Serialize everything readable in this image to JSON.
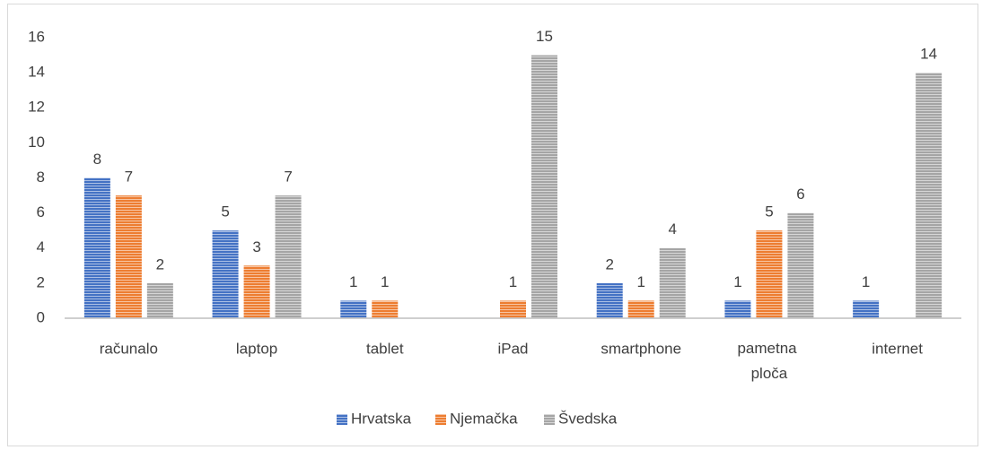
{
  "chart_data": {
    "type": "bar",
    "categories": [
      "računalo",
      "laptop",
      "tablet",
      "iPad",
      "smartphone",
      "pametna ploča",
      "internet"
    ],
    "series": [
      {
        "name": "Hrvatska",
        "color": "#4472c4",
        "values": [
          8,
          5,
          1,
          null,
          2,
          1,
          1
        ]
      },
      {
        "name": "Njemačka",
        "color": "#ed7d31",
        "values": [
          7,
          3,
          1,
          1,
          1,
          5,
          null
        ]
      },
      {
        "name": "Švedska",
        "color": "#a5a5a5",
        "values": [
          2,
          7,
          null,
          15,
          4,
          6,
          14
        ]
      }
    ],
    "ylim": [
      0,
      16
    ],
    "yticks": [
      0,
      2,
      4,
      6,
      8,
      10,
      12,
      14,
      16
    ],
    "grid": false,
    "legend": "bottom"
  }
}
